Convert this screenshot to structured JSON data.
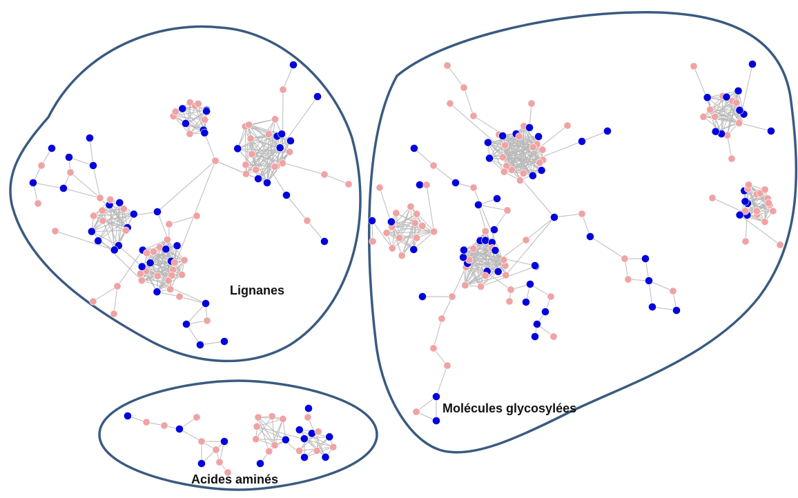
{
  "colors": {
    "outline": "#3a5a80",
    "edge": "#b9b9b9",
    "node_pink": "#f0a3a3",
    "node_blue": "#0000dd"
  },
  "clusters": [
    {
      "id": "lignanes",
      "label": "Lignanes"
    },
    {
      "id": "glycosylees",
      "label": "Molécules glycosylées"
    },
    {
      "id": "amines",
      "label": "Acides aminés"
    }
  ]
}
